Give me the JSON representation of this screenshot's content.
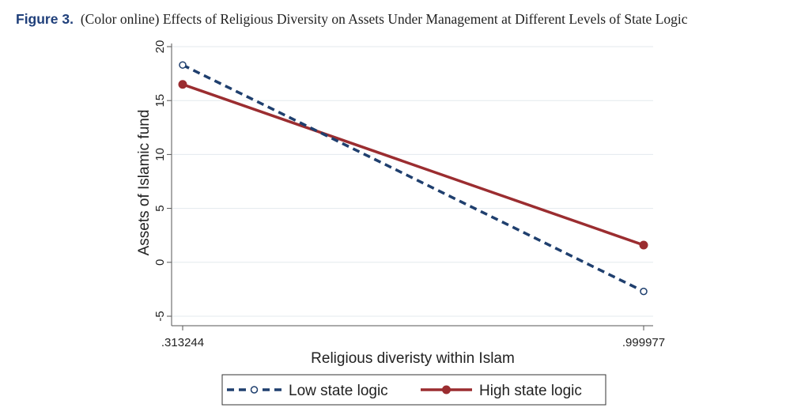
{
  "caption": {
    "label": "Figure 3.",
    "text": "(Color online) Effects of Religious Diversity on Assets Under Management at Different Levels of State Logic"
  },
  "chart_data": {
    "type": "line",
    "title": "",
    "xlabel": "Religious diveristy within Islam",
    "ylabel": "Assets of Islamic fund",
    "x": [
      0.313244,
      0.999977
    ],
    "x_tick_labels": [
      ".313244",
      ".999977"
    ],
    "ylim": [
      -5,
      20
    ],
    "y_ticks": [
      -5,
      0,
      5,
      10,
      15,
      20
    ],
    "y_tick_labels": [
      "-5",
      "0",
      "5",
      "10",
      "15",
      "20"
    ],
    "grid": true,
    "legend_position": "bottom",
    "series": [
      {
        "name": "Low state logic",
        "values": [
          18.3,
          -2.7
        ],
        "color": "#1f3f6e",
        "style": "dashed",
        "marker": "hollow-circle"
      },
      {
        "name": "High state logic",
        "values": [
          16.5,
          1.6
        ],
        "color": "#9b2d30",
        "style": "solid",
        "marker": "filled-circle"
      }
    ]
  }
}
